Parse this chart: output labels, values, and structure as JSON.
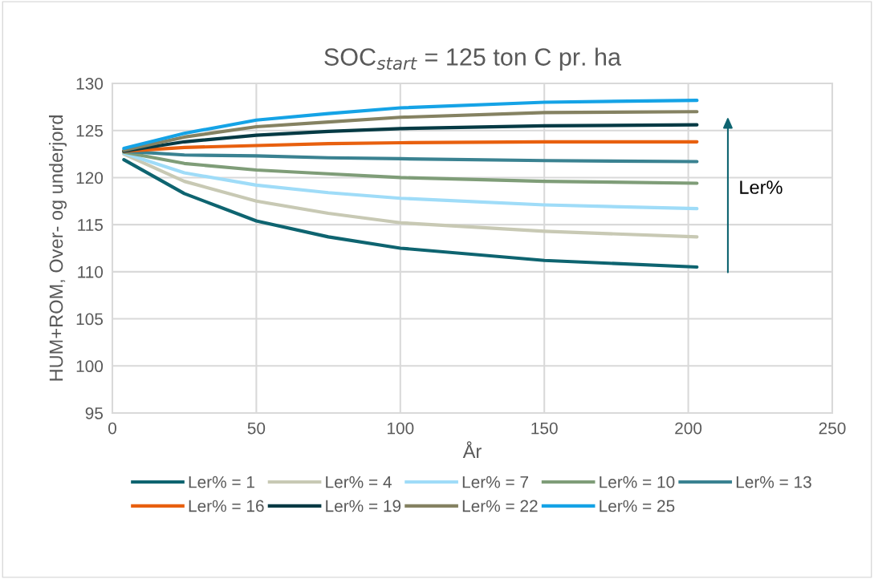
{
  "chart_data": {
    "type": "line",
    "title": "SOC$_{start}$ = 125 ton C pr. ha",
    "xlabel": "År",
    "ylabel": "HUM+ROM, Over- og underjord",
    "x": [
      4,
      25,
      50,
      75,
      100,
      150,
      203
    ],
    "series": [
      {
        "name": "Ler% = 1",
        "color": "#0e6470",
        "values": [
          121.9,
          118.3,
          115.4,
          113.7,
          112.5,
          111.2,
          110.5
        ]
      },
      {
        "name": "Ler% = 4",
        "color": "#c8c9b4",
        "values": [
          122.5,
          119.6,
          117.5,
          116.2,
          115.2,
          114.3,
          113.7
        ]
      },
      {
        "name": "Ler% = 7",
        "color": "#9fdcf8",
        "values": [
          122.6,
          120.5,
          119.2,
          118.4,
          117.8,
          117.1,
          116.7
        ]
      },
      {
        "name": "Ler% = 10",
        "color": "#7f9d78",
        "values": [
          122.7,
          121.5,
          120.8,
          120.4,
          120.0,
          119.6,
          119.4
        ]
      },
      {
        "name": "Ler% = 13",
        "color": "#3a8291",
        "values": [
          122.8,
          122.4,
          122.3,
          122.1,
          122.0,
          121.8,
          121.7
        ]
      },
      {
        "name": "Ler% = 16",
        "color": "#e8600f",
        "values": [
          122.8,
          123.2,
          123.4,
          123.6,
          123.7,
          123.8,
          123.8
        ]
      },
      {
        "name": "Ler% = 19",
        "color": "#053a44",
        "values": [
          122.8,
          123.8,
          124.5,
          124.9,
          125.2,
          125.5,
          125.6
        ]
      },
      {
        "name": "Ler% = 22",
        "color": "#858262",
        "values": [
          122.9,
          124.3,
          125.4,
          125.9,
          126.4,
          126.9,
          127.0
        ]
      },
      {
        "name": "Ler% = 25",
        "color": "#15a3e6",
        "values": [
          123.1,
          124.7,
          126.1,
          126.8,
          127.4,
          128.0,
          128.2
        ]
      }
    ],
    "xlim": [
      0,
      250
    ],
    "xticks": [
      0,
      50,
      100,
      150,
      200,
      250
    ],
    "ylim": [
      95,
      130
    ],
    "yticks": [
      95,
      100,
      105,
      110,
      115,
      120,
      125,
      130
    ],
    "annotations": [
      "Ler%"
    ],
    "grid": true,
    "legend": "bottom",
    "marker": "none",
    "line_style": "solid"
  }
}
